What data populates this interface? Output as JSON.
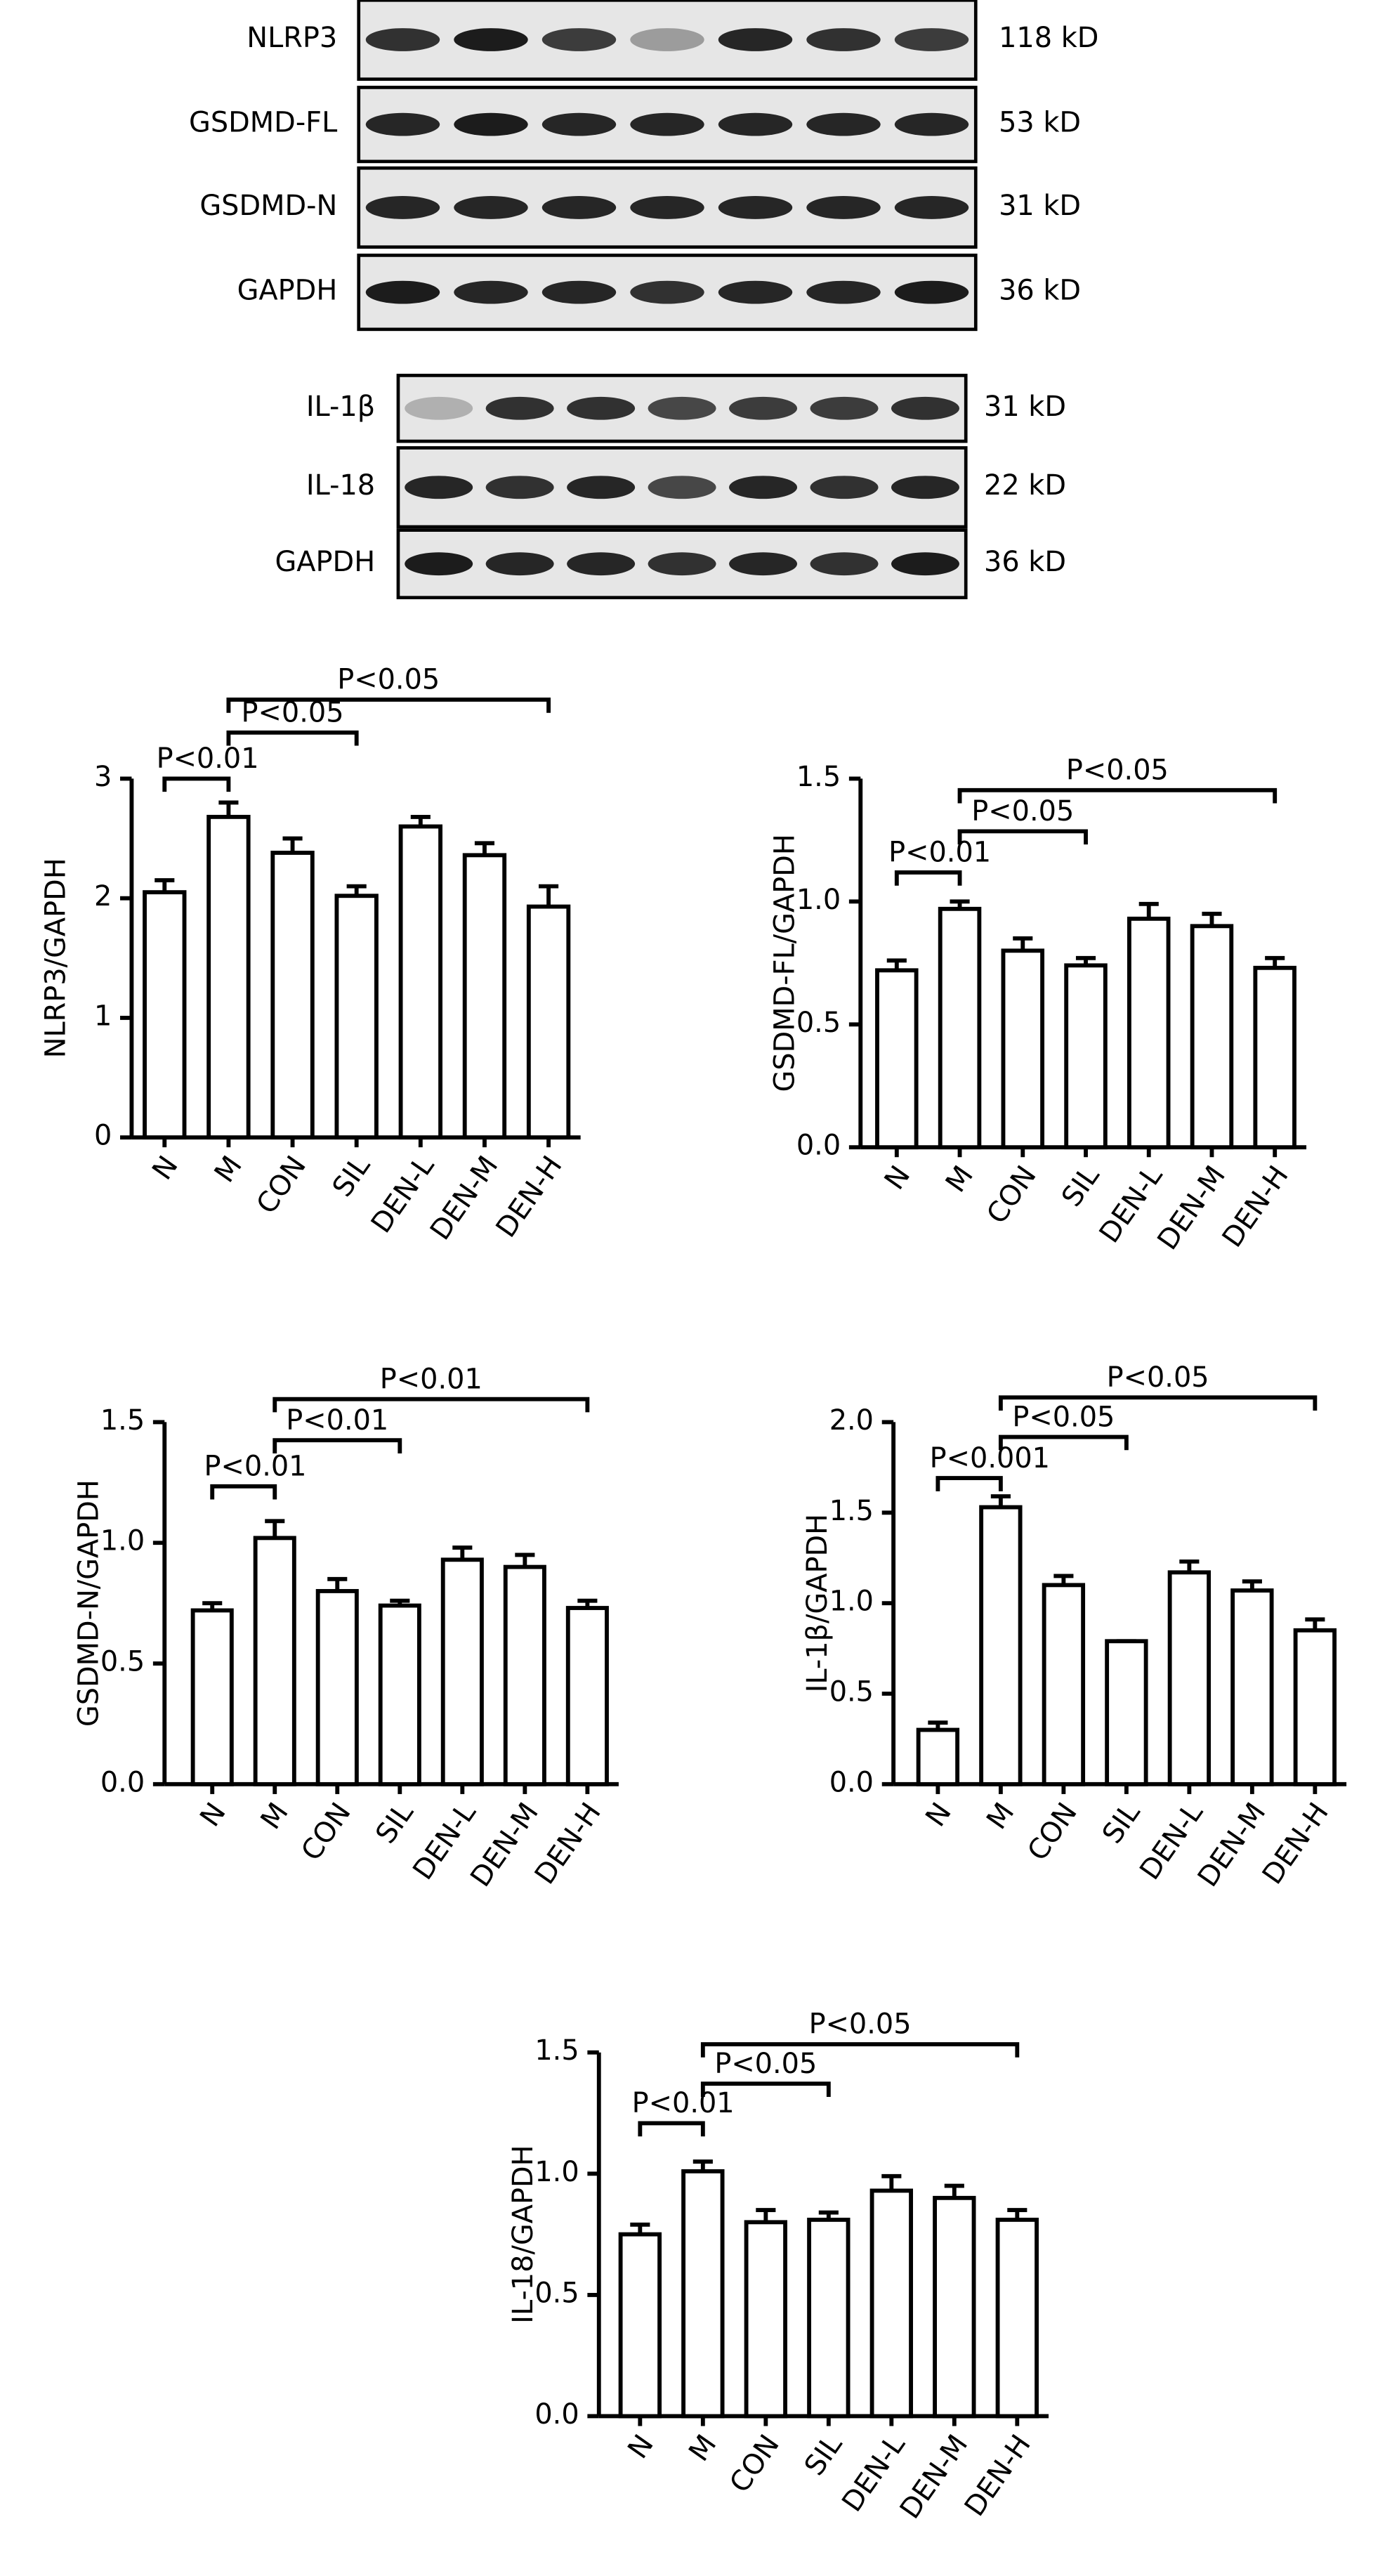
{
  "blots": [
    {
      "rows": [
        {
          "label": "NLRP3",
          "size": "118 kD"
        },
        {
          "label": "GSDMD-FL",
          "size": "53 kD"
        },
        {
          "label": "GSDMD-N",
          "size": "31 kD"
        },
        {
          "label": "GAPDH",
          "size": "36 kD"
        }
      ]
    },
    {
      "rows": [
        {
          "label": "IL-1β",
          "size": "31 kD"
        },
        {
          "label": "IL-18",
          "size": "22 kD"
        },
        {
          "label": "GAPDH",
          "size": "36 kD"
        }
      ]
    }
  ],
  "chart_data": [
    {
      "type": "bar",
      "y_label": "NLRP3/GAPDH",
      "categories": [
        "N",
        "M",
        "CON",
        "SIL",
        "DEN-L",
        "DEN-M",
        "DEN-H"
      ],
      "values": [
        2.05,
        2.68,
        2.38,
        2.02,
        2.6,
        2.36,
        1.93
      ],
      "errors": [
        0.1,
        0.12,
        0.12,
        0.08,
        0.08,
        0.1,
        0.17
      ],
      "ylim": [
        0,
        3
      ],
      "yticks": [
        0,
        1,
        2,
        3
      ],
      "annotations": [
        {
          "label": "P<0.01",
          "between": [
            "N",
            "M"
          ]
        },
        {
          "label": "P<0.05",
          "between": [
            "M",
            "SIL"
          ]
        },
        {
          "label": "P<0.05",
          "between": [
            "M",
            "DEN-H"
          ]
        }
      ]
    },
    {
      "type": "bar",
      "y_label": "GSDMD-FL/GAPDH",
      "categories": [
        "N",
        "M",
        "CON",
        "SIL",
        "DEN-L",
        "DEN-M",
        "DEN-H"
      ],
      "values": [
        0.72,
        0.97,
        0.8,
        0.74,
        0.93,
        0.9,
        0.73
      ],
      "errors": [
        0.04,
        0.03,
        0.05,
        0.03,
        0.06,
        0.05,
        0.04
      ],
      "ylim": [
        0,
        1.5
      ],
      "yticks": [
        {
          "value": 0,
          "label": "0.0"
        },
        0.5,
        {
          "value": 1,
          "label": "1.0"
        },
        1.5
      ],
      "annotations": [
        {
          "label": "P<0.01",
          "between": [
            "N",
            "M"
          ]
        },
        {
          "label": "P<0.05",
          "between": [
            "M",
            "SIL"
          ]
        },
        {
          "label": "P<0.05",
          "between": [
            "M",
            "DEN-H"
          ]
        }
      ]
    },
    {
      "type": "bar",
      "y_label": "GSDMD-N/GAPDH",
      "categories": [
        "N",
        "M",
        "CON",
        "SIL",
        "DEN-L",
        "DEN-M",
        "DEN-H"
      ],
      "values": [
        0.72,
        1.02,
        0.8,
        0.74,
        0.93,
        0.9,
        0.73
      ],
      "errors": [
        0.03,
        0.07,
        0.05,
        0.02,
        0.05,
        0.05,
        0.03
      ],
      "ylim": [
        0,
        1.5
      ],
      "yticks": [
        {
          "value": 0,
          "label": "0.0"
        },
        0.5,
        {
          "value": 1,
          "label": "1.0"
        },
        1.5
      ],
      "annotations": [
        {
          "label": "P<0.01",
          "between": [
            "N",
            "M"
          ]
        },
        {
          "label": "P<0.01",
          "between": [
            "M",
            "SIL"
          ]
        },
        {
          "label": "P<0.01",
          "between": [
            "M",
            "DEN-H"
          ]
        }
      ]
    },
    {
      "type": "bar",
      "y_label": "IL-1β/GAPDH",
      "categories": [
        "N",
        "M",
        "CON",
        "SIL",
        "DEN-L",
        "DEN-M",
        "DEN-H"
      ],
      "values": [
        0.3,
        1.53,
        1.1,
        0.79,
        1.17,
        1.07,
        0.85
      ],
      "errors": [
        0.04,
        0.06,
        0.05,
        0,
        0.06,
        0.05,
        0.06
      ],
      "ylim": [
        0,
        2
      ],
      "yticks": [
        {
          "value": 0,
          "label": "0.0"
        },
        0.5,
        {
          "value": 1,
          "label": "1.0"
        },
        1.5,
        {
          "value": 2,
          "label": "2.0"
        }
      ],
      "annotations": [
        {
          "label": "P<0.001",
          "between": [
            "N",
            "M"
          ]
        },
        {
          "label": "P<0.05",
          "between": [
            "M",
            "SIL"
          ]
        },
        {
          "label": "P<0.05",
          "between": [
            "M",
            "DEN-H"
          ]
        }
      ]
    },
    {
      "type": "bar",
      "y_label": "IL-18/GAPDH",
      "categories": [
        "N",
        "M",
        "CON",
        "SIL",
        "DEN-L",
        "DEN-M",
        "DEN-H"
      ],
      "values": [
        0.75,
        1.01,
        0.8,
        0.81,
        0.93,
        0.9,
        0.81
      ],
      "errors": [
        0.04,
        0.04,
        0.05,
        0.03,
        0.06,
        0.05,
        0.04
      ],
      "ylim": [
        0,
        1.5
      ],
      "yticks": [
        {
          "value": 0,
          "label": "0.0"
        },
        0.5,
        {
          "value": 1,
          "label": "1.0"
        },
        1.5
      ],
      "annotations": [
        {
          "label": "P<0.01",
          "between": [
            "N",
            "M"
          ]
        },
        {
          "label": "P<0.05",
          "between": [
            "M",
            "SIL"
          ]
        },
        {
          "label": "P<0.05",
          "between": [
            "M",
            "DEN-H"
          ]
        }
      ]
    }
  ]
}
